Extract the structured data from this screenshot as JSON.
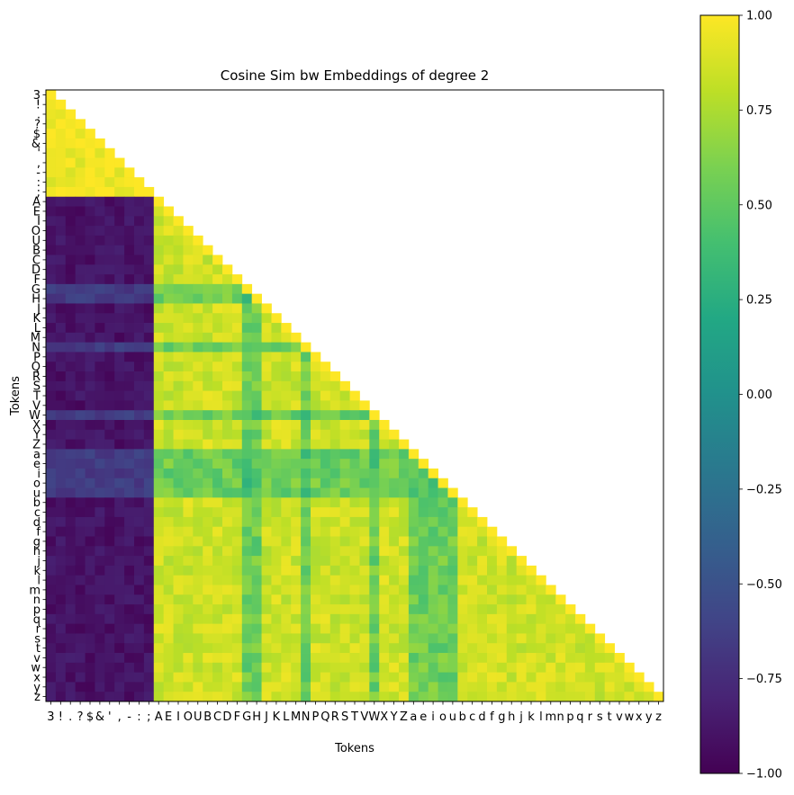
{
  "chart_data": {
    "type": "heatmap",
    "title": "Cosine Sim bw Embeddings of degree 2",
    "xlabel": "Tokens",
    "ylabel": "Tokens",
    "tokens": [
      "3",
      "!",
      ".",
      "?",
      "$",
      "&",
      "'",
      ",",
      "-",
      ":",
      ";",
      "A",
      "E",
      "I",
      "O",
      "U",
      "B",
      "C",
      "D",
      "F",
      "G",
      "H",
      "J",
      "K",
      "L",
      "M",
      "N",
      "P",
      "Q",
      "R",
      "S",
      "T",
      "V",
      "W",
      "X",
      "Y",
      "Z",
      "a",
      "e",
      "i",
      "o",
      "u",
      "b",
      "c",
      "d",
      "f",
      "g",
      "h",
      "j",
      "k",
      "l",
      "m",
      "n",
      "p",
      "q",
      "r",
      "s",
      "t",
      "v",
      "w",
      "x",
      "y",
      "z"
    ],
    "groups": {
      "symbols": [
        "3",
        "!",
        ".",
        "?",
        "$",
        "&",
        "'",
        ",",
        "-",
        ":",
        ";"
      ],
      "vowels": [
        "A",
        "E",
        "I",
        "O",
        "U",
        "a",
        "e",
        "i",
        "o",
        "u"
      ],
      "outliers": [
        "G",
        "H",
        "N",
        "W",
        "a",
        "e",
        "i",
        "o",
        "u"
      ]
    },
    "mask": "lower-triangle-including-diagonal",
    "values_description_note": "",
    "block_values": {
      "symbol_symbol": 0.95,
      "symbol_letter": -0.9,
      "letter_letter": 0.85,
      "outlier_outlier": 0.4,
      "outlier_letter": 0.55
    },
    "colorbar": {
      "min": -1.0,
      "max": 1.0,
      "ticks": [
        1.0,
        0.75,
        0.5,
        0.25,
        0.0,
        -0.25,
        -0.5,
        -0.75,
        -1.0
      ],
      "tick_labels": [
        "1.00",
        "0.75",
        "0.50",
        "0.25",
        "0.00",
        "−0.25",
        "−0.50",
        "−0.75",
        "−1.00"
      ],
      "colormap": "viridis"
    },
    "y_tick_labels_display": [
      "3",
      "!",
      ".",
      "?",
      "$",
      "&",
      "'",
      ",",
      "-",
      ":",
      ";",
      "A",
      "E",
      "I",
      "O",
      "U",
      "B",
      "C",
      "D",
      "F",
      "G",
      "H",
      "J",
      "K",
      "L",
      "M",
      "N",
      "P",
      "Q",
      "R",
      "S",
      "T",
      "V",
      "W",
      "X",
      "Y",
      "Z",
      "a",
      "e",
      "i",
      "o",
      "u",
      "b",
      "c",
      "d",
      "f",
      "g",
      "h",
      "j",
      "k",
      "l",
      "m",
      "n",
      "p",
      "q",
      "r",
      "s",
      "t",
      "v",
      "w",
      "x",
      "y",
      "z"
    ],
    "x_tick_labels_display": [
      "3",
      "!",
      ".",
      "?",
      "$",
      "&",
      "'",
      ",",
      "-",
      ":",
      ";",
      "A",
      "E",
      "I",
      "O",
      "U",
      "B",
      "C",
      "D",
      "F",
      "G",
      "H",
      "J",
      "K",
      "L",
      "M",
      "N",
      "P",
      "Q",
      "R",
      "S",
      "T",
      "V",
      "W",
      "X",
      "Y",
      "Z",
      "a",
      "e",
      "i",
      "o",
      "u",
      "b",
      "c",
      "d",
      "f",
      "g",
      "h",
      "j",
      "k",
      "l",
      "m",
      "n",
      "p",
      "q",
      "r",
      "s",
      "t",
      "v",
      "w",
      "x",
      "y",
      "z"
    ]
  }
}
